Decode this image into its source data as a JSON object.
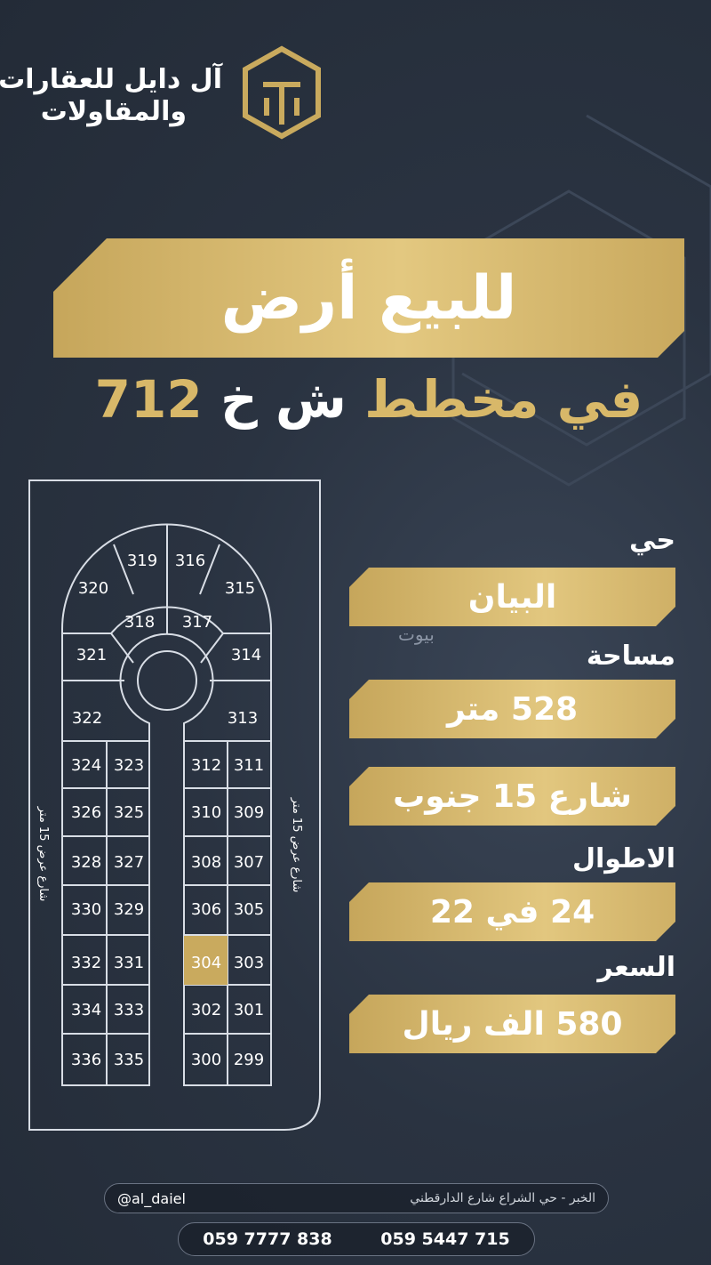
{
  "brand": {
    "name": "آل دايل للعقارات",
    "subname": "والمقاولات"
  },
  "headline": {
    "title": "للبيع أرض",
    "subtitle": {
      "prefix": "في مخطط",
      "highlight": "ش خ",
      "number": "712"
    }
  },
  "watermark": "بيوت",
  "map": {
    "street_left": "شارع عرض 15 متر",
    "street_right": "شارع عرض 15 متر",
    "highlight_color": "#c9aa5e",
    "plots": [
      {
        "number": 319
      },
      {
        "number": 316
      },
      {
        "number": 320
      },
      {
        "number": 315
      },
      {
        "number": 318
      },
      {
        "number": 317
      },
      {
        "number": 321
      },
      {
        "number": 314
      },
      {
        "number": 322
      },
      {
        "number": 313
      },
      {
        "number": 324
      },
      {
        "number": 323
      },
      {
        "number": 312
      },
      {
        "number": 311
      },
      {
        "number": 326
      },
      {
        "number": 325
      },
      {
        "number": 310
      },
      {
        "number": 309
      },
      {
        "number": 328
      },
      {
        "number": 327
      },
      {
        "number": 308
      },
      {
        "number": 307
      },
      {
        "number": 330
      },
      {
        "number": 329
      },
      {
        "number": 306
      },
      {
        "number": 305
      },
      {
        "number": 332
      },
      {
        "number": 331
      },
      {
        "number": 304,
        "highlighted": true
      },
      {
        "number": 303
      },
      {
        "number": 334
      },
      {
        "number": 333
      },
      {
        "number": 302
      },
      {
        "number": 301
      },
      {
        "number": 336
      },
      {
        "number": 335
      },
      {
        "number": 300
      },
      {
        "number": 299
      }
    ]
  },
  "details": {
    "district": {
      "label": "حي",
      "value": "البيان"
    },
    "area": {
      "label": "مساحة",
      "value": "528 متر"
    },
    "street": {
      "value": "شارع 15 جنوب"
    },
    "dimensions": {
      "label": "الاطوال",
      "value": "24 في 22"
    },
    "price": {
      "label": "السعر",
      "value": "580 الف ريال"
    }
  },
  "footer": {
    "address": "الخبر - حي الشراع شارع الدارقطني",
    "handle": "@al_daiel",
    "phones": [
      "059 7777 838",
      "059 5447 715"
    ]
  }
}
